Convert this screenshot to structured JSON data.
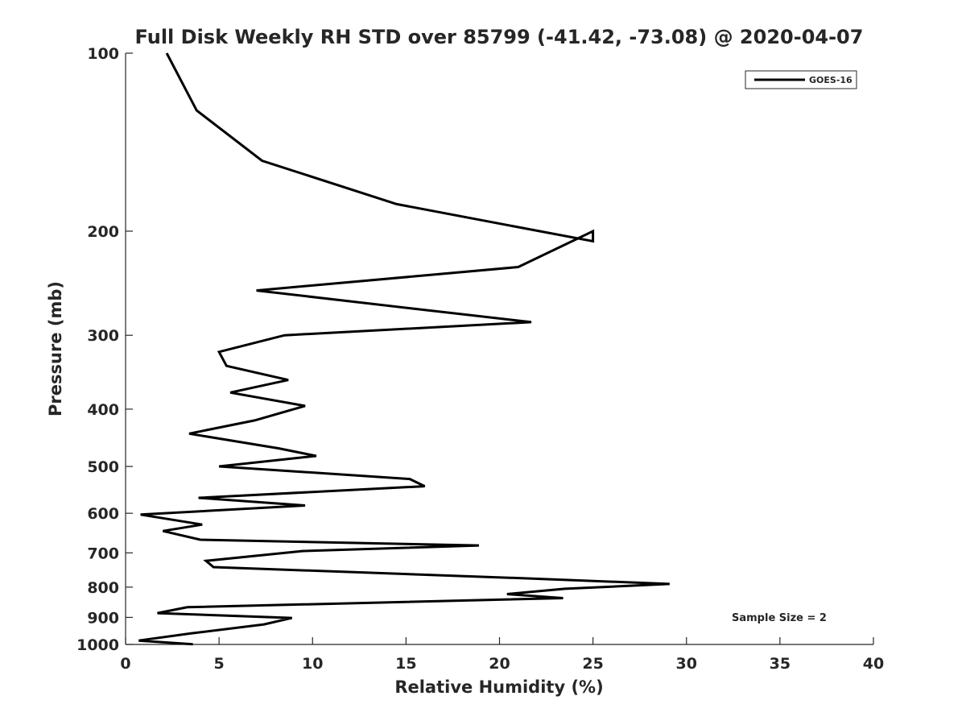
{
  "chart_data": {
    "type": "line",
    "title": "Full Disk Weekly RH STD over 85799 (-41.42, -73.08) @ 2020-04-07",
    "xlabel": "Relative Humidity (%)",
    "ylabel": "Pressure (mb)",
    "xlim": [
      0,
      40
    ],
    "ylim": [
      100,
      1000
    ],
    "y_scale": "log",
    "y_reversed": true,
    "x_ticks": [
      "0",
      "5",
      "10",
      "15",
      "20",
      "25",
      "30",
      "35",
      "40"
    ],
    "y_ticks": [
      "100",
      "200",
      "300",
      "400",
      "500",
      "600",
      "700",
      "800",
      "900",
      "1000"
    ],
    "legend_position": "top-right",
    "annotation": "Sample Size = 2",
    "series": [
      {
        "name": "GOES-16",
        "color": "#000000",
        "points": [
          [
            2.2,
            100
          ],
          [
            3.8,
            125
          ],
          [
            7.3,
            152
          ],
          [
            14.5,
            180
          ],
          [
            25.0,
            208
          ],
          [
            25.0,
            200
          ],
          [
            21.0,
            230
          ],
          [
            7.0,
            252
          ],
          [
            15.2,
            270
          ],
          [
            21.7,
            285
          ],
          [
            8.5,
            300
          ],
          [
            5.0,
            320
          ],
          [
            5.4,
            338
          ],
          [
            8.7,
            357
          ],
          [
            5.6,
            375
          ],
          [
            9.6,
            395
          ],
          [
            6.9,
            418
          ],
          [
            3.4,
            440
          ],
          [
            8.2,
            466
          ],
          [
            10.2,
            480
          ],
          [
            5.0,
            500
          ],
          [
            15.2,
            525
          ],
          [
            16.0,
            540
          ],
          [
            3.9,
            565
          ],
          [
            9.6,
            582
          ],
          [
            0.8,
            603
          ],
          [
            4.1,
            627
          ],
          [
            2.0,
            643
          ],
          [
            4.0,
            665
          ],
          [
            18.9,
            680
          ],
          [
            9.5,
            695
          ],
          [
            4.3,
            722
          ],
          [
            4.7,
            740
          ],
          [
            22.3,
            775
          ],
          [
            29.1,
            790
          ],
          [
            23.5,
            805
          ],
          [
            20.4,
            822
          ],
          [
            23.4,
            835
          ],
          [
            3.3,
            865
          ],
          [
            1.7,
            885
          ],
          [
            8.9,
            902
          ],
          [
            7.4,
            925
          ],
          [
            3.5,
            958
          ],
          [
            0.7,
            985
          ],
          [
            3.6,
            999
          ]
        ]
      }
    ]
  }
}
